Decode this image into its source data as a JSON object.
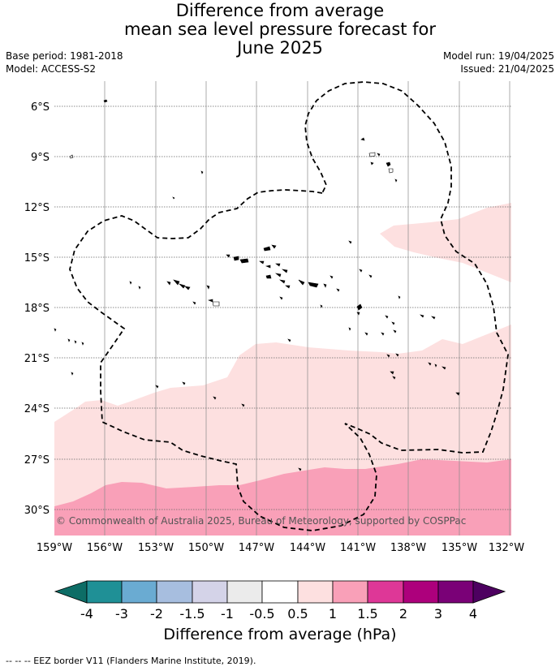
{
  "title": {
    "lines": [
      "Difference from average",
      "mean sea level pressure forecast for",
      "June 2025"
    ]
  },
  "meta": {
    "base_period": "Base period: 1981-2018",
    "model": "Model: ACCESS-S2",
    "model_run": "Model run: 19/04/2025",
    "issued": "Issued: 21/04/2025"
  },
  "map": {
    "lat_labels": [
      "6°S",
      "9°S",
      "12°S",
      "15°S",
      "18°S",
      "21°S",
      "24°S",
      "27°S",
      "30°S"
    ],
    "lon_labels": [
      "159°W",
      "156°W",
      "153°W",
      "150°W",
      "147°W",
      "144°W",
      "141°W",
      "138°W",
      "135°W",
      "132°W"
    ],
    "copyright": "© Commonwealth of Australia 2025, Bureau of Meteorology, supported by COSPPac",
    "fill_colors": {
      "band_0_5_to_1": "#fde0e0",
      "band_1_to_1_5": "#f9a0b8"
    }
  },
  "colorbar": {
    "ticks": [
      "-4",
      "-3",
      "-2",
      "-1.5",
      "-1",
      "-0.5",
      "0.5",
      "1",
      "1.5",
      "2",
      "3",
      "4"
    ],
    "colors": [
      "#0d6d66",
      "#1f9096",
      "#6aabd2",
      "#a7bedf",
      "#d4d3e8",
      "#ebebeb",
      "#ffffff",
      "#fde0e0",
      "#f9a0b8",
      "#de3797",
      "#ad007c",
      "#7a0177",
      "#4d0060"
    ],
    "title": "Difference from average (hPa)"
  },
  "footer": {
    "legend_note": "--  --  -- EEZ border V11 (Flanders Marine Institute, 2019)."
  }
}
